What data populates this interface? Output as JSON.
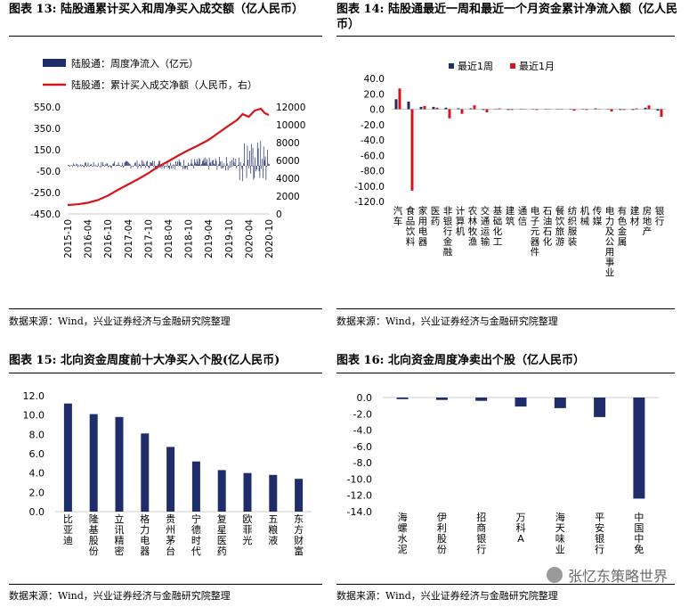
{
  "panels": {
    "p13": {
      "title": "图表 13:  陆股通累计买入和周净买入成交额（亿人民币）",
      "source": "数据来源：Wind，兴业证券经济与金融研究院整理"
    },
    "p14": {
      "title": "图表 14:  陆股通最近一周和最近一个月资金累计净流入额（亿人民币）",
      "source": "数据来源：Wind，兴业证券经济与金融研究院整理"
    },
    "p15": {
      "title": "图表 15:  北向资金周度前十大净买入个股(亿人民币)",
      "source": "数据来源：Wind，兴业证券经济与金融研究院整理"
    },
    "p16": {
      "title": "图表 16:  北向资金周度净卖出个股（亿人民币）",
      "source": "数据来源：Wind，兴业证券经济与金融研究院整理"
    }
  },
  "watermark": "张忆东策略世界",
  "colors": {
    "navy": "#1f2d6b",
    "red": "#d8141b"
  },
  "chart_data": [
    {
      "id": "chart13",
      "type": "bar+line",
      "legend": [
        "陆股通：周度净流入（亿元）",
        "陆股通：累计买入成交净额（人民币，右）"
      ],
      "x_ticks": [
        "2015-10",
        "2016-04",
        "2016-10",
        "2017-04",
        "2017-10",
        "2018-04",
        "2018-10",
        "2019-04",
        "2019-10",
        "2020-04",
        "2020-10"
      ],
      "y_left_ticks": [
        "550.0",
        "350.0",
        "150.0",
        "-50.0",
        "-250.0",
        "-450.0"
      ],
      "y_left_range": [
        -450,
        550
      ],
      "y_right_ticks": [
        "12000",
        "10000",
        "8000",
        "6000",
        "4000",
        "2000",
        "0"
      ],
      "y_right_range": [
        0,
        12000
      ],
      "line_points": [
        [
          0,
          1000
        ],
        [
          0.5,
          1080
        ],
        [
          1,
          1250
        ],
        [
          1.5,
          1550
        ],
        [
          2,
          2050
        ],
        [
          2.5,
          2700
        ],
        [
          3,
          3300
        ],
        [
          3.5,
          3900
        ],
        [
          4,
          4550
        ],
        [
          4.5,
          5300
        ],
        [
          5,
          5900
        ],
        [
          5.5,
          6550
        ],
        [
          6,
          7150
        ],
        [
          6.5,
          7700
        ],
        [
          7,
          8300
        ],
        [
          7.5,
          9100
        ],
        [
          8,
          9900
        ],
        [
          8.4,
          10500
        ],
        [
          8.7,
          11200
        ],
        [
          9,
          10900
        ],
        [
          9.3,
          11600
        ],
        [
          9.6,
          11800
        ],
        [
          9.8,
          11300
        ],
        [
          10,
          11100
        ]
      ]
    },
    {
      "id": "chart14",
      "type": "bar",
      "series": [
        {
          "name": "最近1周"
        },
        {
          "name": "最近1月"
        }
      ],
      "y_ticks": [
        "40.0",
        "20.0",
        "0.0",
        "-20.0",
        "-40.0",
        "-60.0",
        "-80.0",
        "-100.0",
        "-120.0"
      ],
      "ylim": [
        -120,
        40
      ],
      "categories": [
        "汽车",
        "食品饮料",
        "家用电器",
        "医药",
        "非银行金融",
        "计算机",
        "农林牧渔",
        "交通运输",
        "基础化工",
        "建筑",
        "通信",
        "电子元器件",
        "石油石化",
        "餐饮旅游",
        "纺织服装",
        "机械",
        "传媒",
        "电力及公用事业",
        "有色金属",
        "建材",
        "房地产",
        "银行"
      ],
      "week": [
        13,
        10,
        3,
        3,
        2,
        1,
        1,
        -1,
        0.5,
        -1,
        0,
        -0.5,
        0,
        -0.5,
        -0.5,
        0.5,
        1,
        -0.5,
        -1,
        -1,
        2,
        -2
      ],
      "month": [
        27,
        -106,
        4,
        2,
        -12,
        -6,
        5,
        -4,
        1,
        -1,
        -0.5,
        -1,
        0,
        -0.5,
        -2,
        -1,
        -0.5,
        -3,
        -1,
        1,
        5,
        -10
      ]
    },
    {
      "id": "chart15",
      "type": "bar",
      "categories": [
        "比亚迪",
        "隆基股份",
        "立讯精密",
        "格力电器",
        "贵州茅台",
        "宁德时代",
        "复星医药",
        "欧菲光",
        "五粮液",
        "东方财富"
      ],
      "values": [
        11.2,
        10.1,
        9.8,
        8.1,
        6.7,
        5.2,
        4.3,
        4.0,
        3.8,
        3.4
      ],
      "y_ticks": [
        "12.0",
        "10.0",
        "8.0",
        "6.0",
        "4.0",
        "2.0",
        "0.0"
      ],
      "ylim": [
        0,
        12
      ]
    },
    {
      "id": "chart16",
      "type": "bar",
      "categories": [
        "海螺水泥",
        "伊利股份",
        "招商银行",
        "万科A",
        "海天味业",
        "平安银行",
        "中国中免"
      ],
      "values": [
        -0.2,
        -0.3,
        -0.4,
        -1.1,
        -1.3,
        -2.4,
        -12.4
      ],
      "y_ticks": [
        "0.0",
        "-2.0",
        "-4.0",
        "-6.0",
        "-8.0",
        "-10.0",
        "-12.0",
        "-14.0"
      ],
      "ylim": [
        -14,
        0
      ]
    }
  ]
}
